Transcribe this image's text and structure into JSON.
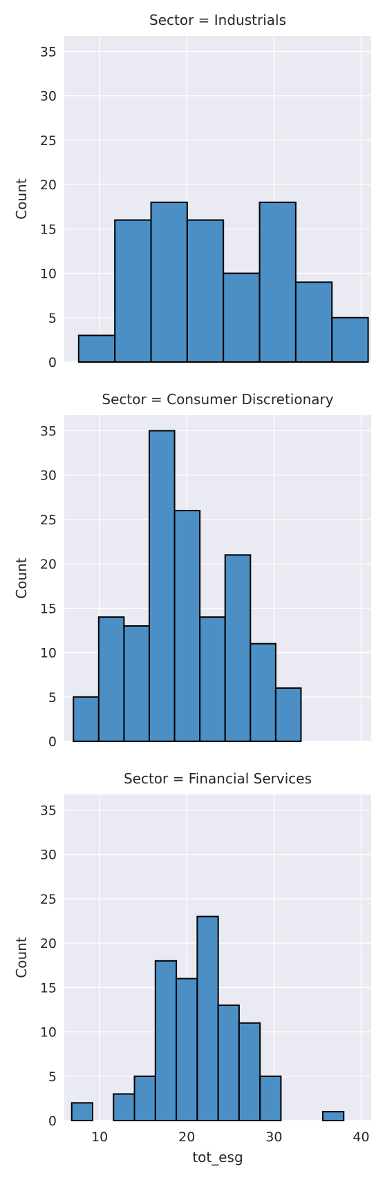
{
  "chart_data": [
    {
      "type": "bar",
      "title": "Sector = Industrials",
      "xlabel": "",
      "ylabel": "Count",
      "ylim": [
        0,
        36.75
      ],
      "xlim": [
        5.95,
        41.15
      ],
      "yticks": [
        0,
        5,
        10,
        15,
        20,
        25,
        30,
        35
      ],
      "xticks": [
        10,
        20,
        30,
        40
      ],
      "show_xtick_labels": false,
      "grid": true,
      "bins": [
        {
          "x0": 7.6,
          "x1": 11.75,
          "count": 3
        },
        {
          "x0": 11.75,
          "x1": 15.9,
          "count": 16
        },
        {
          "x0": 15.9,
          "x1": 20.05,
          "count": 18
        },
        {
          "x0": 20.05,
          "x1": 24.2,
          "count": 16
        },
        {
          "x0": 24.2,
          "x1": 28.35,
          "count": 10
        },
        {
          "x0": 28.35,
          "x1": 32.5,
          "count": 18
        },
        {
          "x0": 32.5,
          "x1": 36.65,
          "count": 9
        },
        {
          "x0": 36.65,
          "x1": 40.8,
          "count": 5
        }
      ]
    },
    {
      "type": "bar",
      "title": "Sector = Consumer Discretionary",
      "xlabel": "",
      "ylabel": "Count",
      "ylim": [
        0,
        36.75
      ],
      "xlim": [
        5.95,
        41.15
      ],
      "yticks": [
        0,
        5,
        10,
        15,
        20,
        25,
        30,
        35
      ],
      "xticks": [
        10,
        20,
        30,
        40
      ],
      "show_xtick_labels": false,
      "grid": true,
      "bins": [
        {
          "x0": 7.0,
          "x1": 9.9,
          "count": 5
        },
        {
          "x0": 9.9,
          "x1": 12.8,
          "count": 14
        },
        {
          "x0": 12.8,
          "x1": 15.7,
          "count": 13
        },
        {
          "x0": 15.7,
          "x1": 18.6,
          "count": 35
        },
        {
          "x0": 18.6,
          "x1": 21.5,
          "count": 26
        },
        {
          "x0": 21.5,
          "x1": 24.4,
          "count": 14
        },
        {
          "x0": 24.4,
          "x1": 27.3,
          "count": 21
        },
        {
          "x0": 27.3,
          "x1": 30.2,
          "count": 11
        },
        {
          "x0": 30.2,
          "x1": 33.1,
          "count": 6
        }
      ]
    },
    {
      "type": "bar",
      "title": "Sector = Financial Services",
      "xlabel": "tot_esg",
      "ylabel": "Count",
      "ylim": [
        0,
        36.75
      ],
      "xlim": [
        5.95,
        41.15
      ],
      "yticks": [
        0,
        5,
        10,
        15,
        20,
        25,
        30,
        35
      ],
      "xticks": [
        10,
        20,
        30,
        40
      ],
      "show_xtick_labels": true,
      "grid": true,
      "bins": [
        {
          "x0": 6.8,
          "x1": 9.2,
          "count": 2
        },
        {
          "x0": 9.2,
          "x1": 11.6,
          "count": 0
        },
        {
          "x0": 11.6,
          "x1": 14.0,
          "count": 3
        },
        {
          "x0": 14.0,
          "x1": 16.4,
          "count": 5
        },
        {
          "x0": 16.4,
          "x1": 18.8,
          "count": 18
        },
        {
          "x0": 18.8,
          "x1": 21.2,
          "count": 16
        },
        {
          "x0": 21.2,
          "x1": 23.6,
          "count": 23
        },
        {
          "x0": 23.6,
          "x1": 26.0,
          "count": 13
        },
        {
          "x0": 26.0,
          "x1": 28.4,
          "count": 11
        },
        {
          "x0": 28.4,
          "x1": 30.8,
          "count": 5
        },
        {
          "x0": 30.8,
          "x1": 33.2,
          "count": 0
        },
        {
          "x0": 33.2,
          "x1": 35.6,
          "count": 0
        },
        {
          "x0": 35.6,
          "x1": 38.0,
          "count": 1
        }
      ]
    }
  ]
}
